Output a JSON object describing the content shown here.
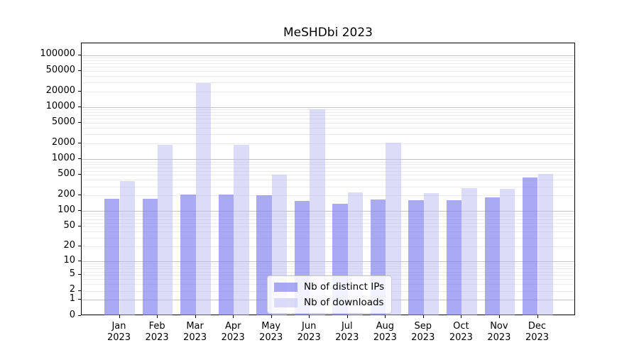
{
  "title": "MeSHDbi 2023",
  "legend": {
    "items": [
      {
        "label": "Nb of distinct IPs",
        "color": "rgba(123,123,238,0.65)"
      },
      {
        "label": "Nb of downloads",
        "color": "rgba(185,185,243,0.5)"
      }
    ]
  },
  "chart_data": {
    "type": "bar",
    "title": "MeSHDbi 2023",
    "categories": [
      "Jan 2023",
      "Feb 2023",
      "Mar 2023",
      "Apr 2023",
      "May 2023",
      "Jun 2023",
      "Jul 2023",
      "Aug 2023",
      "Sep 2023",
      "Oct 2023",
      "Nov 2023",
      "Dec 2023"
    ],
    "series": [
      {
        "name": "Nb of distinct IPs",
        "color": "rgba(123,123,238,0.65)",
        "values": [
          175,
          175,
          210,
          212,
          200,
          160,
          140,
          170,
          165,
          165,
          185,
          445
        ]
      },
      {
        "name": "Nb of downloads",
        "color": "rgba(185,185,243,0.5)",
        "values": [
          380,
          1920,
          29000,
          1870,
          500,
          9000,
          230,
          2100,
          220,
          275,
          270,
          530
        ]
      }
    ],
    "yscale": "log1p",
    "ylim": [
      0,
      167000
    ],
    "yticks": [
      100000,
      50000,
      20000,
      10000,
      5000,
      2000,
      1000,
      500,
      200,
      100,
      50,
      20,
      10,
      5,
      2,
      1,
      0
    ],
    "grid": "both",
    "legend_position": "lower center",
    "xlabel": "",
    "ylabel": ""
  }
}
